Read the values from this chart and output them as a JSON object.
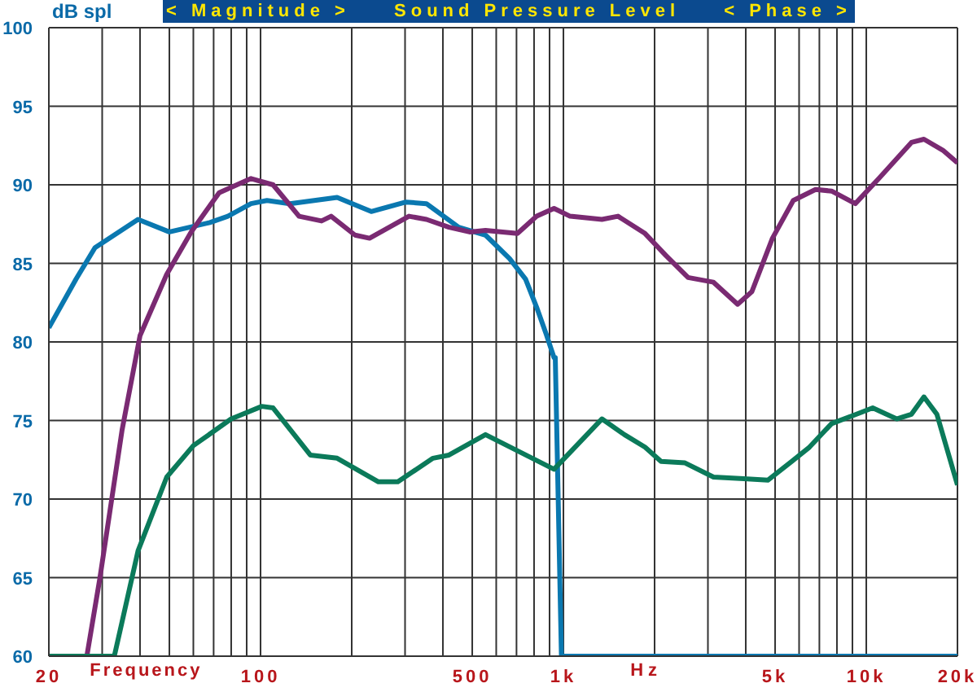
{
  "chart_data": {
    "type": "line",
    "title": "Sound Pressure Level",
    "annotations": [
      "< Magnitude >",
      "< Phase >"
    ],
    "xlabel": "Frequency Hz",
    "ylabel": "dB spl",
    "log": "x",
    "grid": true,
    "legend": false,
    "marker": "none",
    "line_style": "solid",
    "xlim": [
      20,
      20000
    ],
    "ylim": [
      60,
      100
    ],
    "xticks": [
      20,
      {
        "value": 30,
        "label": null
      },
      {
        "value": 40,
        "label": null
      },
      {
        "value": 50,
        "label": null
      },
      {
        "value": 60,
        "label": null
      },
      {
        "value": 70,
        "label": null
      },
      {
        "value": 80,
        "label": null
      },
      {
        "value": 90,
        "label": null
      },
      100,
      {
        "value": 200,
        "label": null
      },
      {
        "value": 300,
        "label": null
      },
      {
        "value": 400,
        "label": null
      },
      500,
      {
        "value": 600,
        "label": null
      },
      {
        "value": 700,
        "label": null
      },
      {
        "value": 800,
        "label": null
      },
      {
        "value": 900,
        "label": null
      },
      {
        "value": 1000,
        "label": "1k"
      },
      {
        "value": 2000,
        "label": null
      },
      {
        "value": 3000,
        "label": null
      },
      {
        "value": 4000,
        "label": null
      },
      {
        "value": 5000,
        "label": "5k"
      },
      {
        "value": 6000,
        "label": null
      },
      {
        "value": 7000,
        "label": null
      },
      {
        "value": 8000,
        "label": null
      },
      {
        "value": 9000,
        "label": null
      },
      {
        "value": 10000,
        "label": "10k"
      },
      {
        "value": 20000,
        "label": "20k"
      }
    ],
    "yticks": [
      60,
      65,
      70,
      75,
      80,
      85,
      90,
      95,
      100
    ],
    "series": [
      {
        "color": "#0a78b0",
        "x": [
          20,
          24.6,
          28.4,
          39.4,
          50,
          68,
          78,
          93,
          105,
          125,
          179,
          232,
          302,
          353,
          451,
          553,
          664,
          750,
          816,
          877,
          931,
          940,
          985,
          20000
        ],
        "values": [
          80.9,
          84.0,
          86.0,
          87.8,
          87.0,
          87.6,
          88.0,
          88.8,
          89.0,
          88.8,
          89.2,
          88.3,
          88.9,
          88.8,
          87.3,
          86.8,
          85.3,
          84.0,
          82.2,
          80.5,
          79.0,
          79.0,
          60,
          60
        ]
      },
      {
        "color": "#7a2a72",
        "x": [
          26.7,
          29.5,
          34.9,
          40,
          49,
          59,
          73,
          93,
          110,
          134,
          159,
          171,
          205,
          229,
          309,
          353,
          419,
          490,
          553,
          705,
          816,
          931,
          1052,
          1340,
          1514,
          1860,
          2180,
          2580,
          3130,
          3760,
          4190,
          4900,
          5740,
          6800,
          7680,
          9200,
          11000,
          14100,
          15500,
          17900,
          20000
        ],
        "values": [
          60,
          65.0,
          74.4,
          80.4,
          84.3,
          87.0,
          89.5,
          90.4,
          90.0,
          88.0,
          87.7,
          88.0,
          86.8,
          86.6,
          88.0,
          87.8,
          87.3,
          87.0,
          87.1,
          86.9,
          88.0,
          88.5,
          88.0,
          87.8,
          88.0,
          86.9,
          85.5,
          84.1,
          83.8,
          82.4,
          83.2,
          86.6,
          89.0,
          89.7,
          89.6,
          88.8,
          90.4,
          92.7,
          92.9,
          92.2,
          91.4
        ]
      },
      {
        "color": "#0b7a5a",
        "x": [
          20,
          32.9,
          39.4,
          49,
          60,
          80,
          101,
          110,
          146,
          179,
          245,
          284,
          371,
          419,
          553,
          931,
          1340,
          1590,
          1860,
          2100,
          2520,
          3130,
          3940,
          4730,
          5680,
          6490,
          7680,
          8990,
          10500,
          12600,
          14100,
          15500,
          17100,
          20000
        ],
        "values": [
          60,
          60,
          66.7,
          71.4,
          73.4,
          75.1,
          75.9,
          75.8,
          72.8,
          72.6,
          71.1,
          71.1,
          72.6,
          72.8,
          74.1,
          71.9,
          75.1,
          74.1,
          73.3,
          72.4,
          72.3,
          71.4,
          71.3,
          71.2,
          72.4,
          73.3,
          74.8,
          75.3,
          75.8,
          75.1,
          75.4,
          76.5,
          75.4,
          70.9
        ]
      }
    ]
  }
}
